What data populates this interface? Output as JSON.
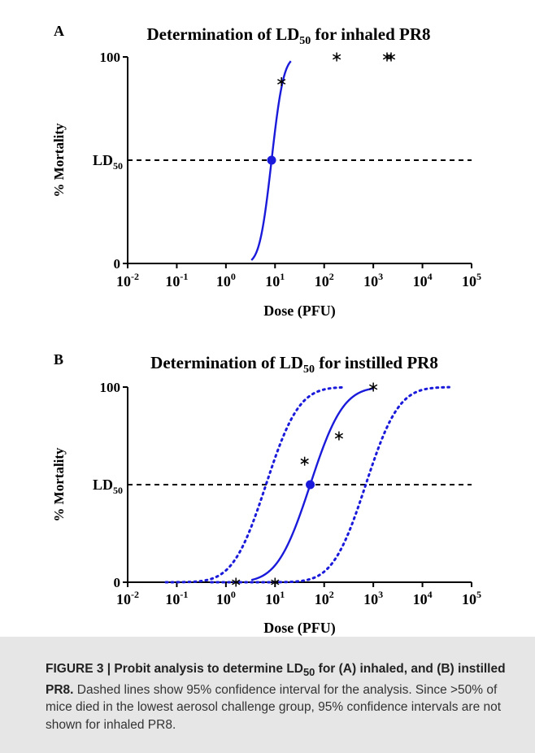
{
  "figure": {
    "caption": {
      "lead_pre": "FIGURE 3 | Probit analysis to determine LD",
      "lead_sub": "50",
      "lead_post": " for (A) inhaled, and (B) instilled PR8.",
      "body": "Dashed lines show 95% confidence interval for the analysis. Since >50% of mice died in the lowest aerosol challenge group, 95% confidence intervals are not shown for inhaled PR8."
    }
  },
  "colors": {
    "curve": "#1a1adb",
    "axis": "#000000",
    "marker": "#000000"
  },
  "chart_data": [
    {
      "panel_label": "A",
      "type": "line",
      "title_pre": "Determination of LD",
      "title_sub": "50",
      "title_post": " for inhaled PR8",
      "xlabel": "Dose (PFU)",
      "ylabel": "% Mortality",
      "x_scale": "log",
      "xlim": [
        0.01,
        100000
      ],
      "ylim": [
        0,
        100
      ],
      "x_ticks": [
        {
          "base": "10",
          "exp": "-2"
        },
        {
          "base": "10",
          "exp": "-1"
        },
        {
          "base": "10",
          "exp": "0"
        },
        {
          "base": "10",
          "exp": "1"
        },
        {
          "base": "10",
          "exp": "2"
        },
        {
          "base": "10",
          "exp": "3"
        },
        {
          "base": "10",
          "exp": "4"
        },
        {
          "base": "10",
          "exp": "5"
        }
      ],
      "y_ticks": [
        "0",
        "100"
      ],
      "ld50_label_pre": "LD",
      "ld50_label_sub": "50",
      "ld50_dose": 8.5,
      "ld50_log_slope": 5.2,
      "series": [
        {
          "line_style": "solid",
          "x_range": [
            3.3,
            21
          ],
          "offset": 0
        }
      ],
      "observed_points": [
        {
          "x": 13.5,
          "y": 88
        },
        {
          "x": 180,
          "y": 100
        },
        {
          "x": 1900,
          "y": 100
        },
        {
          "x": 2300,
          "y": 100
        }
      ]
    },
    {
      "panel_label": "B",
      "type": "line",
      "title_pre": "Determination of LD",
      "title_sub": "50",
      "title_post": " for instilled PR8",
      "xlabel": "Dose (PFU)",
      "ylabel": "% Mortality",
      "x_scale": "log",
      "xlim": [
        0.01,
        100000
      ],
      "ylim": [
        0,
        100
      ],
      "x_ticks": [
        {
          "base": "10",
          "exp": "-2"
        },
        {
          "base": "10",
          "exp": "-1"
        },
        {
          "base": "10",
          "exp": "0"
        },
        {
          "base": "10",
          "exp": "1"
        },
        {
          "base": "10",
          "exp": "2"
        },
        {
          "base": "10",
          "exp": "3"
        },
        {
          "base": "10",
          "exp": "4"
        },
        {
          "base": "10",
          "exp": "5"
        }
      ],
      "y_ticks": [
        "0",
        "100"
      ],
      "ld50_label_pre": "LD",
      "ld50_label_sub": "50",
      "ld50_dose": 52,
      "ld50_log_slope": 1.9,
      "series": [
        {
          "line_style": "solid",
          "x_range": [
            3.3,
            1000
          ],
          "offset": 0
        },
        {
          "line_style": "dotted",
          "x_range": [
            0.06,
            250
          ],
          "offset": -0.9
        },
        {
          "line_style": "dotted",
          "x_range": [
            0.5,
            35000
          ],
          "offset": 1.13
        }
      ],
      "observed_points": [
        {
          "x": 1.6,
          "y": 0
        },
        {
          "x": 10,
          "y": 0
        },
        {
          "x": 40,
          "y": 62
        },
        {
          "x": 200,
          "y": 75
        },
        {
          "x": 1000,
          "y": 100
        }
      ]
    }
  ]
}
